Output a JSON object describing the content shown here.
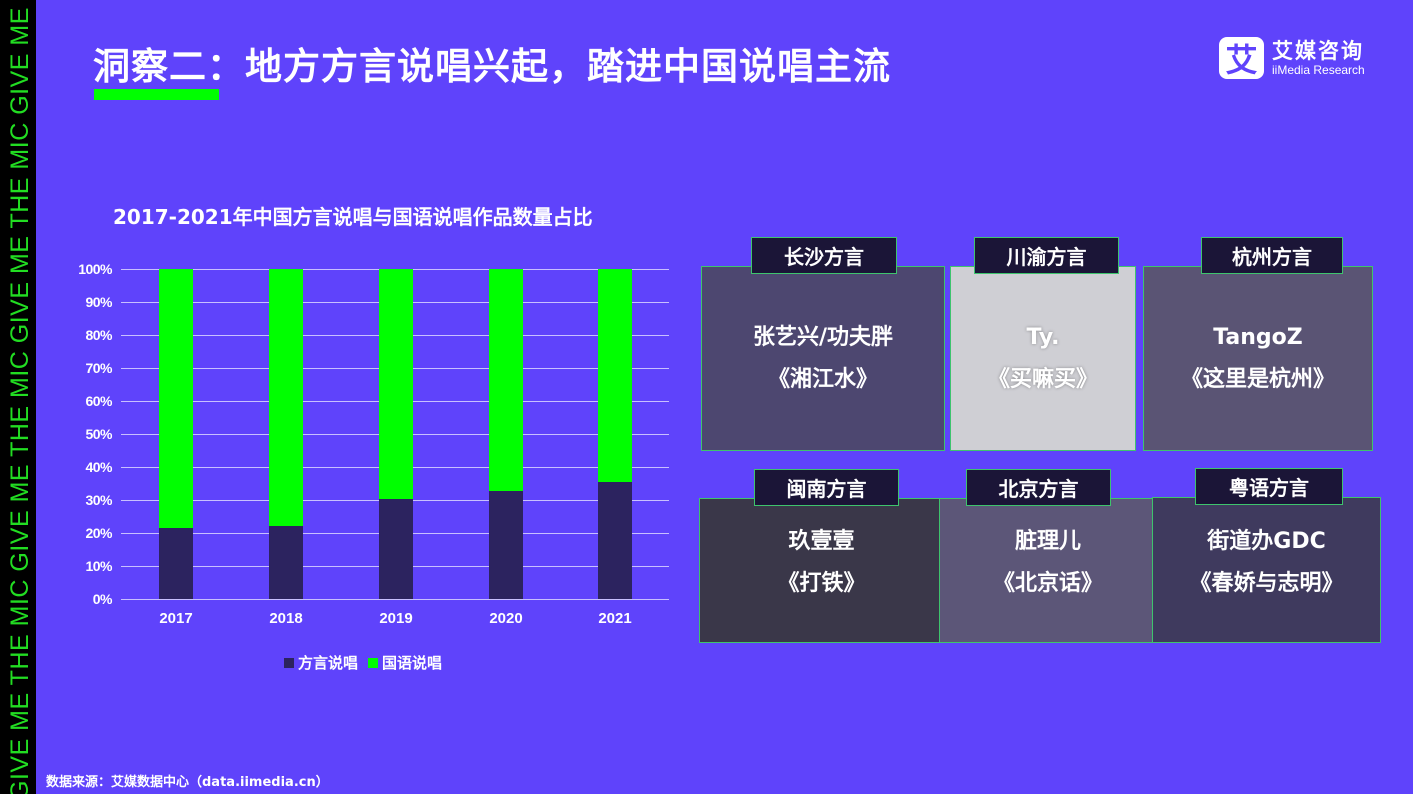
{
  "side_strip": {
    "text": "GIVE ME THE MIC    GIVE ME THE MIC    GIVE ME THE MIC    GIVE ME THE MIC"
  },
  "header": {
    "title": "洞察二：地方方言说唱兴起，踏进中国说唱主流",
    "accent_color": "#00ff00"
  },
  "logo": {
    "mark": "艾",
    "cn": "艾媒咨询",
    "en": "iiMedia Research"
  },
  "chart_data": {
    "type": "bar",
    "stacked": true,
    "title": "2017-2021年中国方言说唱与国语说唱作品数量占比",
    "categories": [
      "2017",
      "2018",
      "2019",
      "2020",
      "2021"
    ],
    "series": [
      {
        "name": "方言说唱",
        "color": "#2c235f",
        "values": [
          21.5,
          22.1,
          30.3,
          32.7,
          35.5
        ]
      },
      {
        "name": "国语说唱",
        "color": "#00ff00",
        "values": [
          78.5,
          77.9,
          69.7,
          67.3,
          64.5
        ]
      }
    ],
    "y_ticks": [
      "100%",
      "90%",
      "80%",
      "70%",
      "60%",
      "50%",
      "40%",
      "30%",
      "20%",
      "10%",
      "0%"
    ],
    "xlabel": "",
    "ylabel": "",
    "ylim": [
      0,
      100
    ],
    "grid": true,
    "legend_position": "bottom"
  },
  "cards": [
    {
      "tag": "长沙方言",
      "artist": "张艺兴/功夫胖",
      "song": "《湘江水》"
    },
    {
      "tag": "川渝方言",
      "artist": "Ty.",
      "song": "《买嘛买》"
    },
    {
      "tag": "杭州方言",
      "artist": "TangoZ",
      "song": "《这里是杭州》"
    },
    {
      "tag": "闽南方言",
      "artist": "玖壹壹",
      "song": "《打铁》"
    },
    {
      "tag": "北京方言",
      "artist": "脏理儿",
      "song": "《北京话》"
    },
    {
      "tag": "粤语方言",
      "artist": "街道办GDC",
      "song": "《春娇与志明》"
    }
  ],
  "footer": {
    "source": "数据来源：艾媒数据中心（data.iimedia.cn）"
  }
}
